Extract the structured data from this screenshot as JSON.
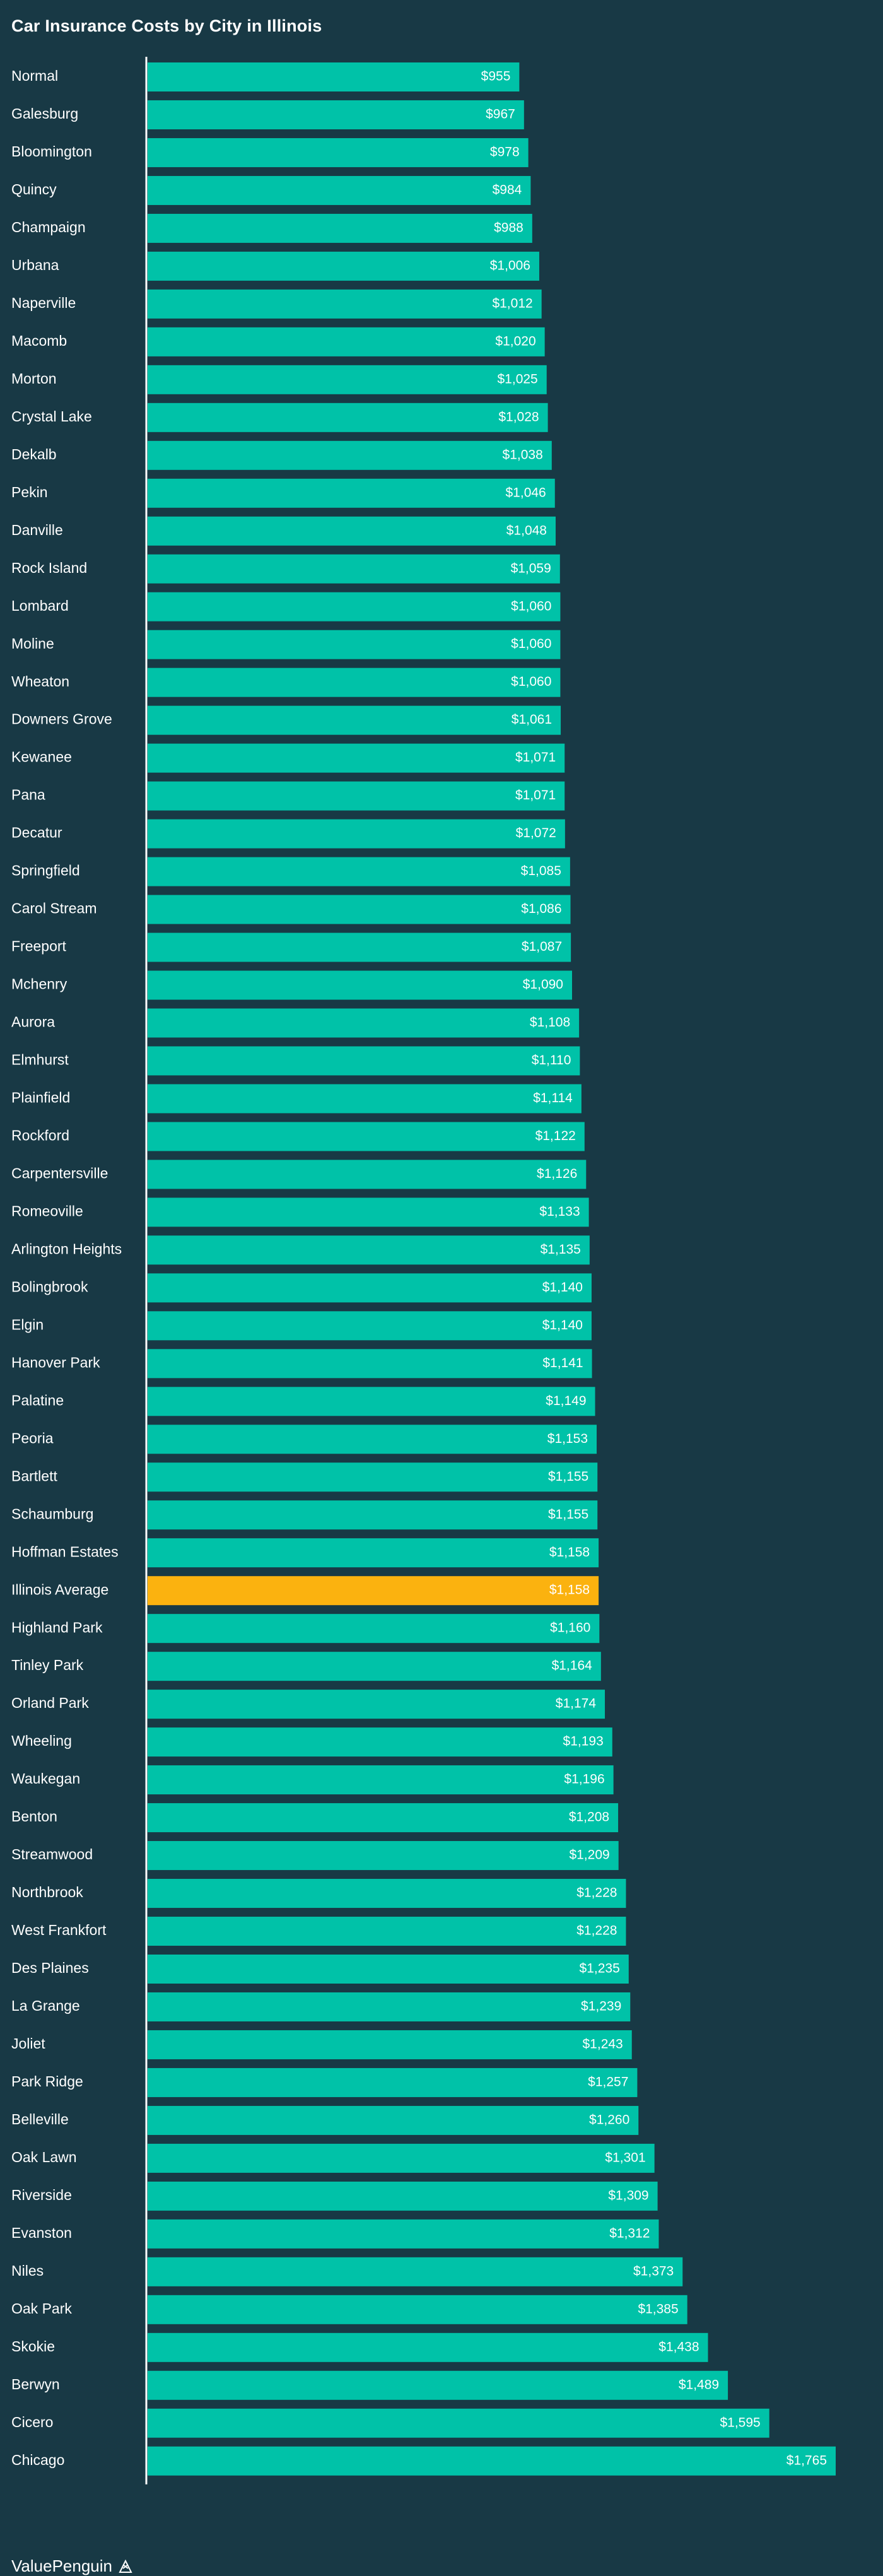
{
  "chart_data": {
    "type": "bar",
    "orientation": "horizontal",
    "title": "Car Insurance Costs by City in Illinois",
    "xlabel": "",
    "ylabel": "",
    "xlim": [
      0,
      1765
    ],
    "grid": false,
    "categories": [
      "Normal",
      "Galesburg",
      "Bloomington",
      "Quincy",
      "Champaign",
      "Urbana",
      "Naperville",
      "Macomb",
      "Morton",
      "Crystal Lake",
      "Dekalb",
      "Pekin",
      "Danville",
      "Rock Island",
      "Lombard",
      "Moline",
      "Wheaton",
      "Downers Grove",
      "Kewanee",
      "Pana",
      "Decatur",
      "Springfield",
      "Carol Stream",
      "Freeport",
      "Mchenry",
      "Aurora",
      "Elmhurst",
      "Plainfield",
      "Rockford",
      "Carpentersville",
      "Romeoville",
      "Arlington Heights",
      "Bolingbrook",
      "Elgin",
      "Hanover Park",
      "Palatine",
      "Peoria",
      "Bartlett",
      "Schaumburg",
      "Hoffman Estates",
      "Illinois Average",
      "Highland Park",
      "Tinley Park",
      "Orland Park",
      "Wheeling",
      "Waukegan",
      "Benton",
      "Streamwood",
      "Northbrook",
      "West Frankfort",
      "Des Plaines",
      "La Grange",
      "Joliet",
      "Park Ridge",
      "Belleville",
      "Oak Lawn",
      "Riverside",
      "Evanston",
      "Niles",
      "Oak Park",
      "Skokie",
      "Berwyn",
      "Cicero",
      "Chicago"
    ],
    "values": [
      955,
      967,
      978,
      984,
      988,
      1006,
      1012,
      1020,
      1025,
      1028,
      1038,
      1046,
      1048,
      1059,
      1060,
      1060,
      1060,
      1061,
      1071,
      1071,
      1072,
      1085,
      1086,
      1087,
      1090,
      1108,
      1110,
      1114,
      1122,
      1126,
      1133,
      1135,
      1140,
      1140,
      1141,
      1149,
      1153,
      1155,
      1155,
      1158,
      1158,
      1160,
      1164,
      1174,
      1193,
      1196,
      1208,
      1209,
      1228,
      1228,
      1235,
      1239,
      1243,
      1257,
      1260,
      1301,
      1309,
      1312,
      1373,
      1385,
      1438,
      1489,
      1595,
      1765
    ],
    "value_labels": [
      "$955",
      "$967",
      "$978",
      "$984",
      "$988",
      "$1,006",
      "$1,012",
      "$1,020",
      "$1,025",
      "$1,028",
      "$1,038",
      "$1,046",
      "$1,048",
      "$1,059",
      "$1,060",
      "$1,060",
      "$1,060",
      "$1,061",
      "$1,071",
      "$1,071",
      "$1,072",
      "$1,085",
      "$1,086",
      "$1,087",
      "$1,090",
      "$1,108",
      "$1,110",
      "$1,114",
      "$1,122",
      "$1,126",
      "$1,133",
      "$1,135",
      "$1,140",
      "$1,140",
      "$1,141",
      "$1,149",
      "$1,153",
      "$1,155",
      "$1,155",
      "$1,158",
      "$1,158",
      "$1,160",
      "$1,164",
      "$1,174",
      "$1,193",
      "$1,196",
      "$1,208",
      "$1,209",
      "$1,228",
      "$1,228",
      "$1,235",
      "$1,239",
      "$1,243",
      "$1,257",
      "$1,260",
      "$1,301",
      "$1,309",
      "$1,312",
      "$1,373",
      "$1,385",
      "$1,438",
      "$1,489",
      "$1,595",
      "$1,765"
    ],
    "highlight_category": "Illinois Average",
    "colors": {
      "background": "#183945",
      "bar": "#00c2a8",
      "highlight": "#fbb20f",
      "axis": "#ffffff",
      "text": "#ffffff"
    }
  },
  "footer": {
    "brand": "ValuePenguin",
    "logo_icon": "penguin-logo-icon"
  }
}
